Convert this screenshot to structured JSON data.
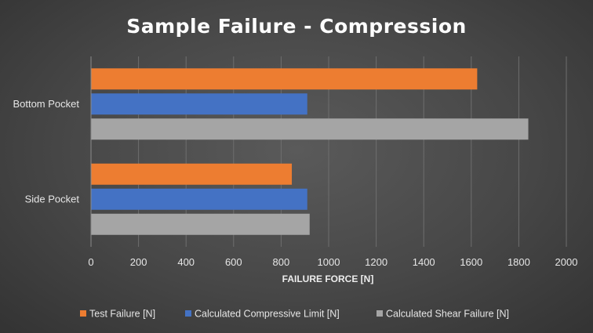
{
  "chart_data": {
    "type": "bar",
    "orientation": "horizontal",
    "title": "Sample Failure - Compression",
    "xlabel": "FAILURE FORCE [N]",
    "ylabel": "",
    "categories": [
      "Bottom Pocket",
      "Side Pocket"
    ],
    "series": [
      {
        "name": "Test Failure [N]",
        "color": "#ED7D31",
        "values": [
          1625,
          845
        ]
      },
      {
        "name": "Calculated Compressive Limit [N]",
        "color": "#4472C4",
        "values": [
          910,
          910
        ]
      },
      {
        "name": "Calculated Shear Failure [N]",
        "color": "#A5A5A5",
        "values": [
          1840,
          920
        ]
      }
    ],
    "xlim": [
      0,
      2000
    ],
    "xticks": [
      "0",
      "200",
      "400",
      "600",
      "800",
      "1000",
      "1200",
      "1400",
      "1600",
      "1800",
      "2000"
    ],
    "grid": true,
    "legend_position": "bottom"
  }
}
